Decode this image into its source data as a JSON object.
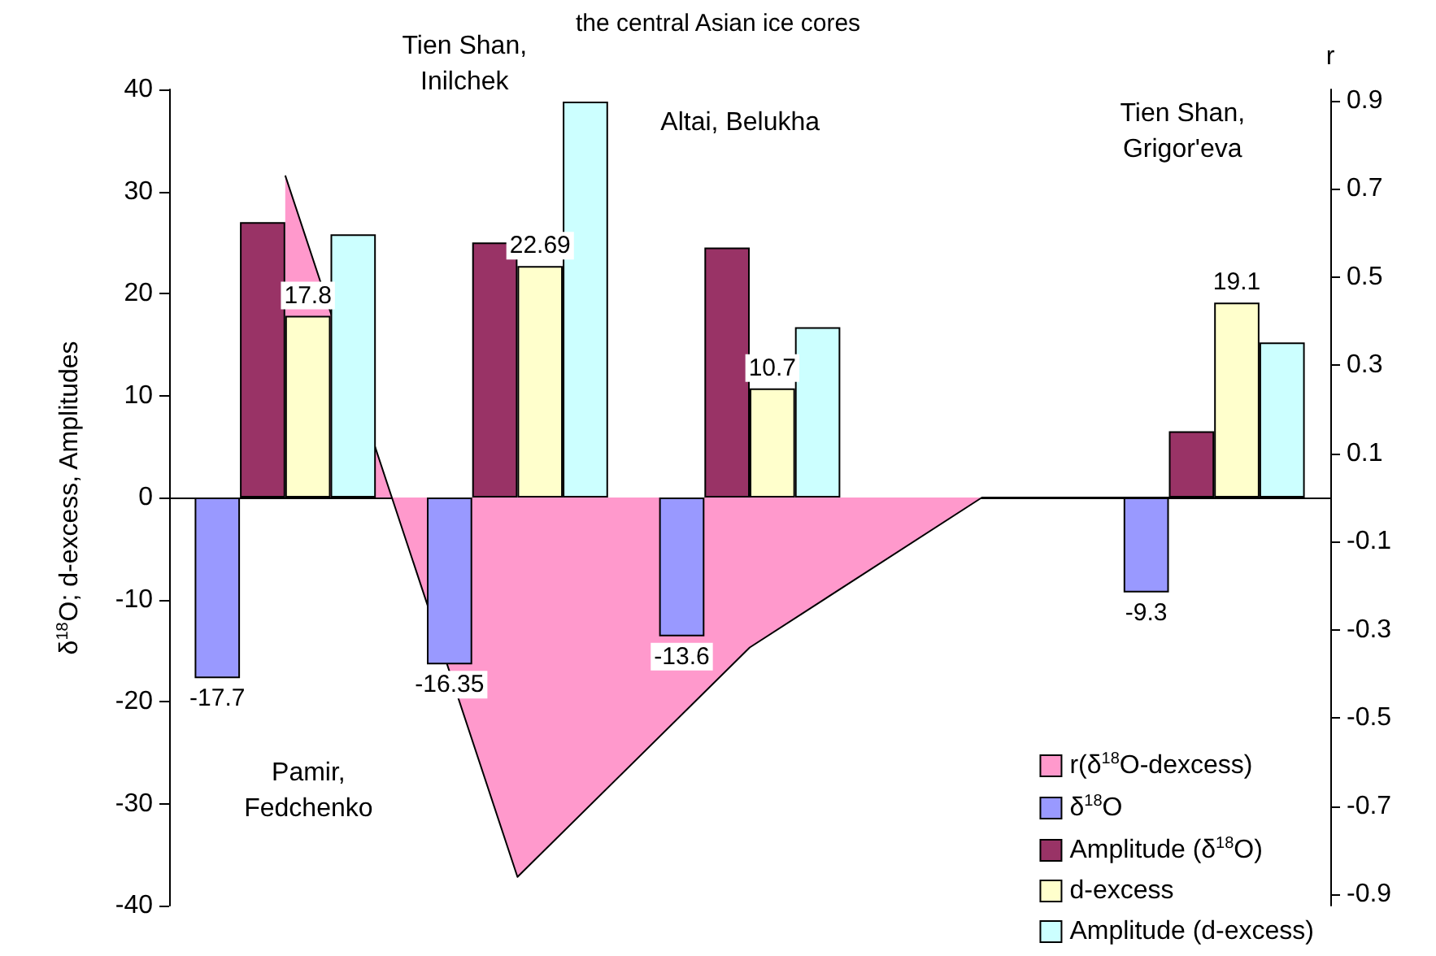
{
  "chart_data": {
    "type": "bar",
    "title": "the central Asian ice cores",
    "ylabel": "δ$^{18}$O; d-excess, Amplitudes",
    "y2label": "r",
    "categories": [
      null,
      null,
      null,
      null,
      null
    ],
    "series": [
      {
        "name": "r(δ$^{18}$O-dexcess)",
        "type": "area",
        "axis": "y2",
        "color": "#ff99cc",
        "values": [
          0.73,
          -0.86,
          -0.34,
          0,
          0
        ]
      },
      {
        "name": "δ$^{18}$O",
        "color": "#9999ff",
        "values": [
          -17.7,
          -16.35,
          -13.6,
          null,
          -9.3
        ],
        "value_labels": [
          "-17.7",
          "-16.35",
          "-13.6",
          null,
          "-9.3"
        ]
      },
      {
        "name": "Amplitude (δ$^{18}$O)",
        "color": "#993366",
        "values": [
          27,
          25,
          24.5,
          null,
          6.5
        ]
      },
      {
        "name": "d-excess",
        "color": "#ffffcc",
        "values": [
          17.8,
          22.69,
          10.7,
          null,
          19.1
        ],
        "value_labels": [
          "17.8",
          "22.69",
          "10.7",
          null,
          "19.1"
        ]
      },
      {
        "name": "Amplitude (d-excess)",
        "color": "#ccffff",
        "values": [
          25.8,
          38.8,
          16.7,
          null,
          15.2
        ]
      }
    ],
    "ylim": [
      -40,
      40
    ],
    "yticks": [
      -40,
      -30,
      -20,
      -10,
      0,
      10,
      20,
      30,
      40
    ],
    "y2lim": [
      -0.925,
      0.925
    ],
    "y2ticks": [
      -0.9,
      -0.7,
      -0.5,
      -0.3,
      -0.1,
      0.1,
      0.3,
      0.5,
      0.7,
      0.9
    ],
    "annotations": [
      "Pamir,\nFedchenko",
      "Tien Shan,\nInilchek",
      "Altai, Belukha",
      "Tien Shan,\nGrigor'eva"
    ],
    "legend": "bottom right"
  }
}
